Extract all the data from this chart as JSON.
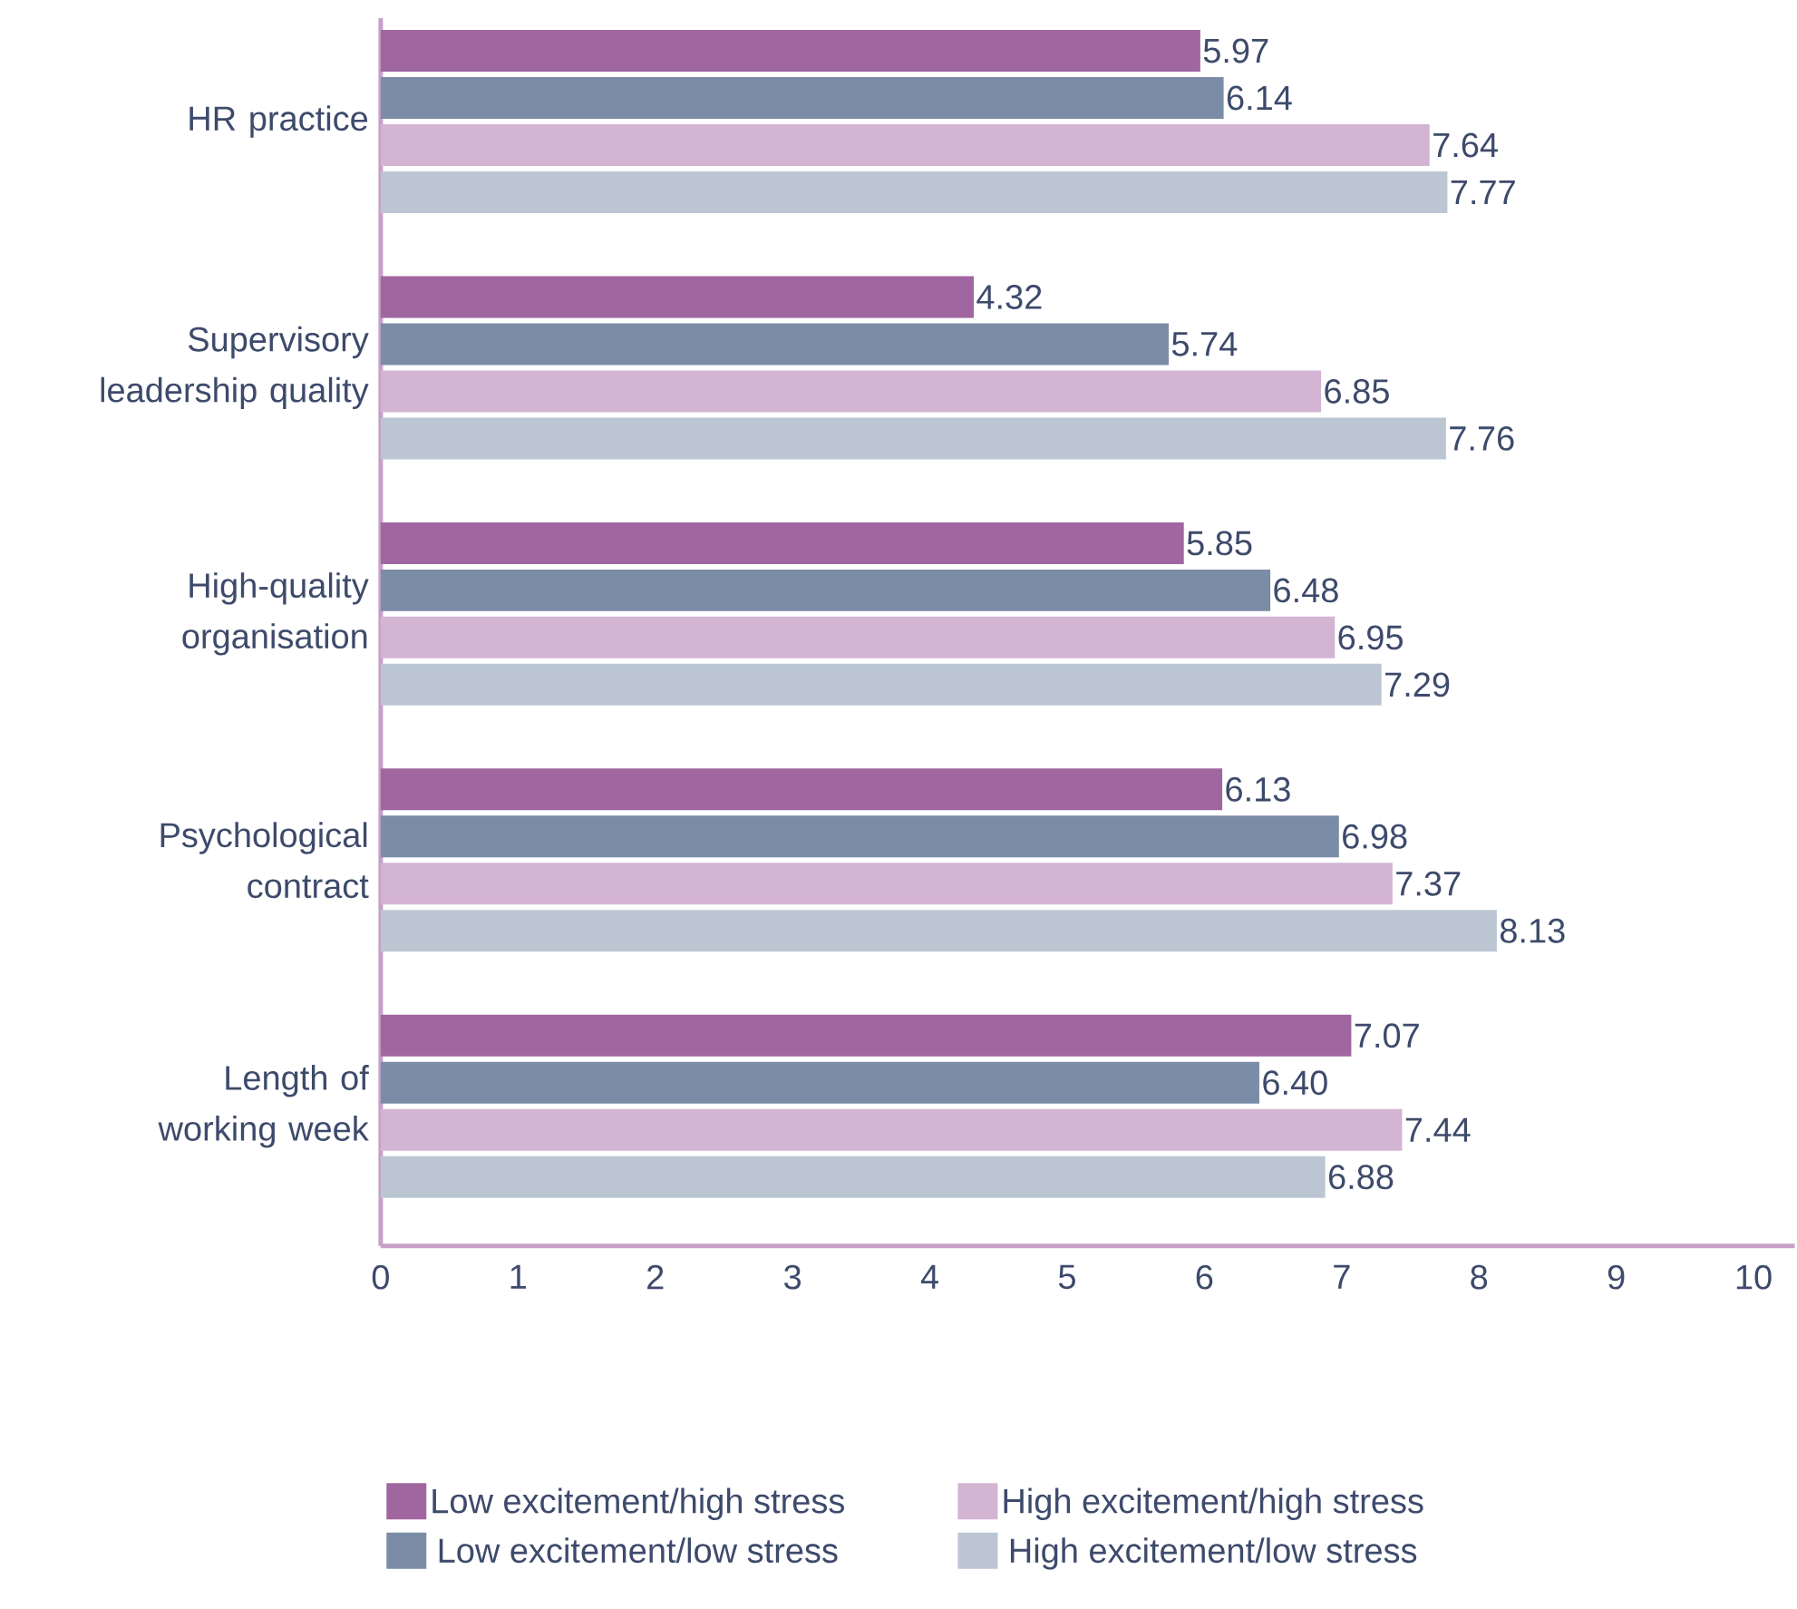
{
  "chart_data": {
    "type": "bar",
    "orientation": "horizontal",
    "categories": [
      "HR practice",
      "Supervisory leadership quality",
      "High-quality organisation",
      "Psychological contract",
      "Length of working week"
    ],
    "series": [
      {
        "name": "Low excitement/high stress",
        "color": "#a066a0",
        "values": [
          5.97,
          4.32,
          5.85,
          6.13,
          7.07
        ],
        "value_labels": [
          "5.97",
          "4.32",
          "5.85",
          "6.13",
          "7.07"
        ]
      },
      {
        "name": "Low excitement/low stress",
        "color": "#7b8ca6",
        "values": [
          6.14,
          5.74,
          6.48,
          6.98,
          6.4
        ],
        "value_labels": [
          "6.14",
          "5.74",
          "6.48",
          "6.98",
          "6.40"
        ]
      },
      {
        "name": "High excitement/high stress",
        "color": "#d3b4d3",
        "values": [
          7.64,
          6.85,
          6.95,
          7.37,
          7.44
        ],
        "value_labels": [
          "7.64",
          "6.85",
          "6.95",
          "7.37",
          "7.44"
        ]
      },
      {
        "name": "High excitement/low stress",
        "color": "#bcc6d3",
        "values": [
          7.77,
          7.76,
          7.29,
          8.13,
          6.88
        ],
        "value_labels": [
          "7.77",
          "7.76",
          "7.29",
          "8.13",
          "6.88"
        ]
      }
    ],
    "xlim": [
      0,
      10.3
    ],
    "xticks": [
      0,
      1,
      2,
      3,
      4,
      5,
      6,
      7,
      8,
      9,
      10
    ],
    "grid": false,
    "legend": "bottom"
  }
}
